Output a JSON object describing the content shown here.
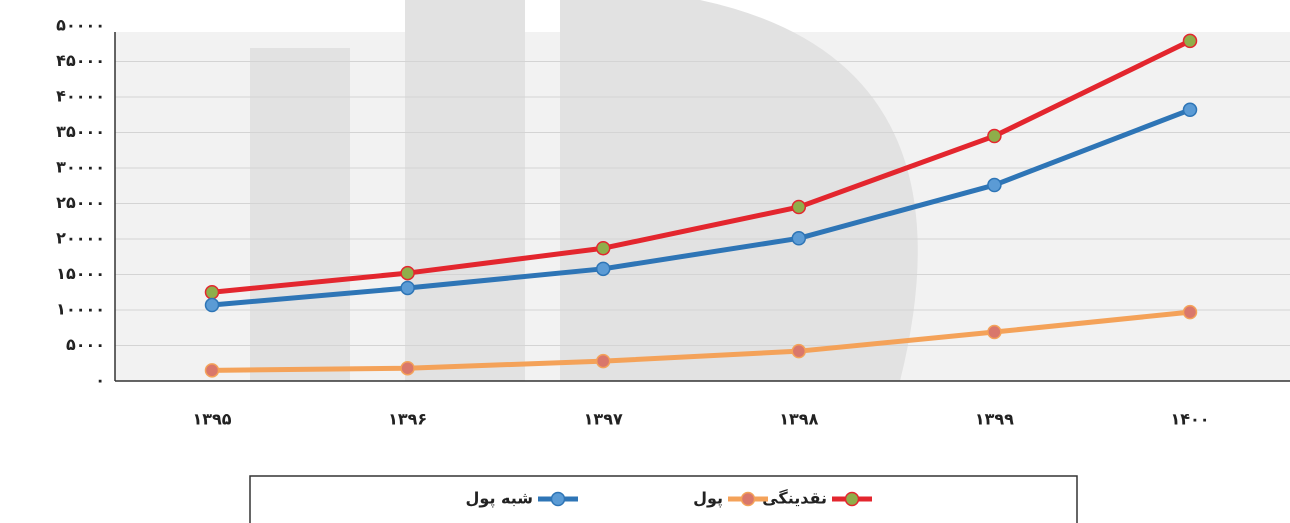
{
  "chart_data": {
    "type": "line",
    "categories": [
      "۱۳۹۵",
      "۱۳۹۶",
      "۱۳۹۷",
      "۱۳۹۸",
      "۱۳۹۹",
      "۱۴۰۰"
    ],
    "series": [
      {
        "name": "نقدینگی",
        "color": "#e3262e",
        "marker_color": "#8fae4a",
        "values": [
          12500,
          15200,
          18700,
          24500,
          34500,
          47900
        ]
      },
      {
        "name": "پول",
        "color": "#f4a259",
        "marker_color": "#d9776b",
        "values": [
          1500,
          1800,
          2800,
          4200,
          6900,
          9700
        ]
      },
      {
        "name": "شبه پول",
        "color": "#2e75b6",
        "marker_color": "#5b9bd5",
        "values": [
          10700,
          13100,
          15800,
          20100,
          27600,
          38200
        ]
      }
    ],
    "ylim": [
      0,
      50000
    ],
    "yticks": [
      {
        "value": 0,
        "label": "۰"
      },
      {
        "value": 5000,
        "label": "۵۰۰۰"
      },
      {
        "value": 10000,
        "label": "۱۰۰۰۰"
      },
      {
        "value": 15000,
        "label": "۱۵۰۰۰"
      },
      {
        "value": 20000,
        "label": "۲۰۰۰۰"
      },
      {
        "value": 25000,
        "label": "۲۵۰۰۰"
      },
      {
        "value": 30000,
        "label": "۳۰۰۰۰"
      },
      {
        "value": 35000,
        "label": "۳۵۰۰۰"
      },
      {
        "value": 40000,
        "label": "۴۰۰۰۰"
      },
      {
        "value": 45000,
        "label": "۴۵۰۰۰"
      },
      {
        "value": 50000,
        "label": "۵۰۰۰۰"
      }
    ],
    "grid": true,
    "legend": "bottom"
  }
}
